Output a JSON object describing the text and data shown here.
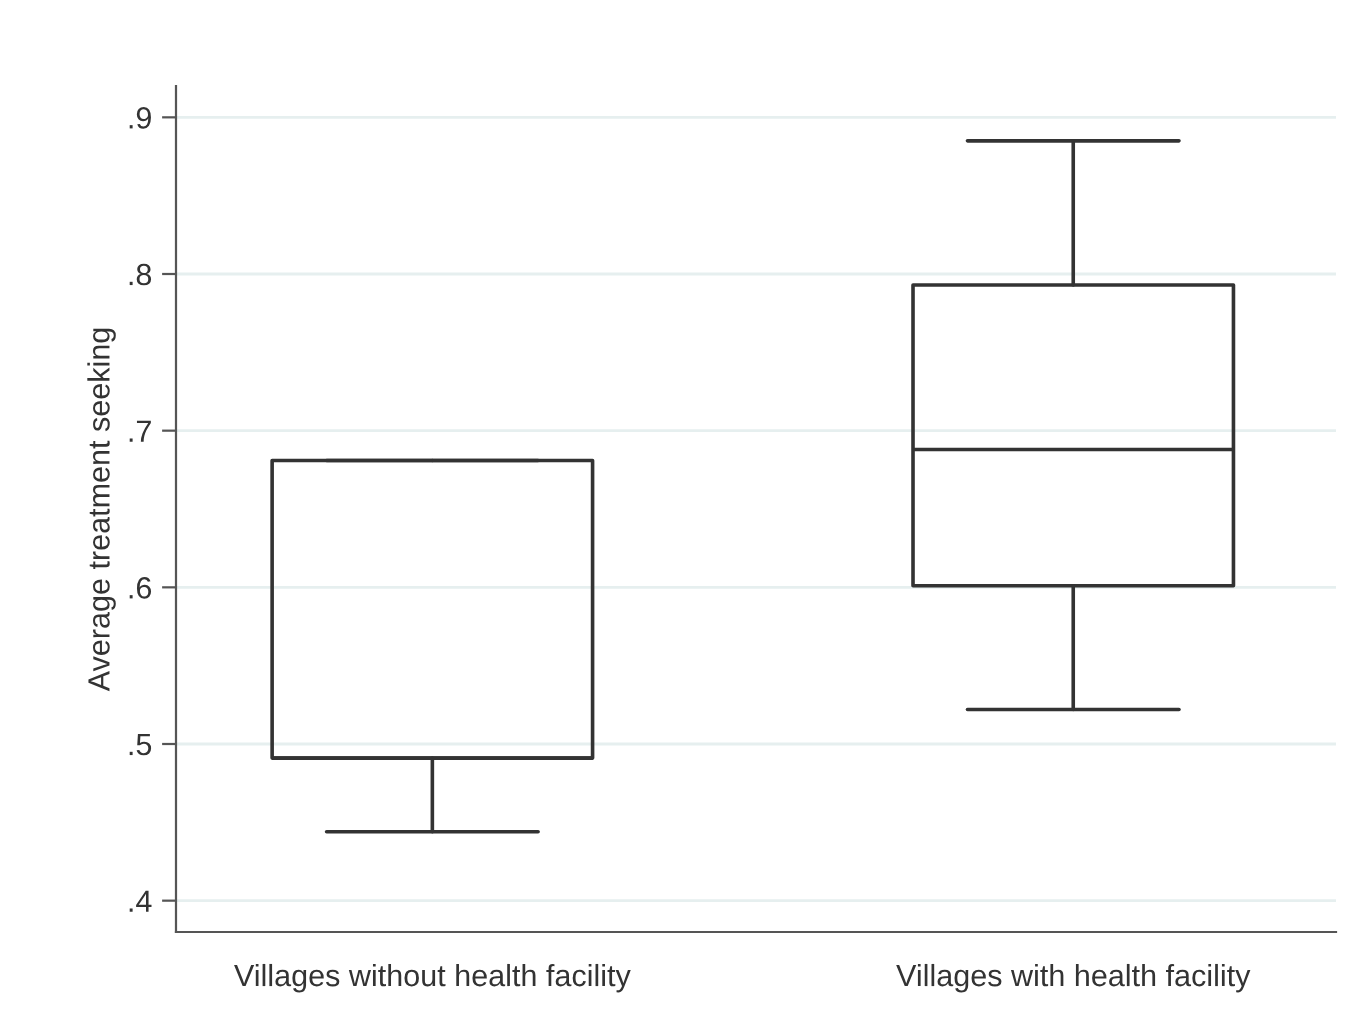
{
  "chart_data": {
    "type": "box",
    "ylabel": "Average treatment seeking",
    "categories": [
      "Villages without health facility",
      "Villages with health facility"
    ],
    "boxes": [
      {
        "low": 0.444,
        "q1": 0.491,
        "median": 0.491,
        "q3": 0.681,
        "high": 0.681
      },
      {
        "low": 0.522,
        "q1": 0.601,
        "median": 0.688,
        "q3": 0.793,
        "high": 0.885
      }
    ],
    "ylim": [
      0.38,
      0.92
    ],
    "yticks": [
      {
        "value": 0.4,
        "label": ".4"
      },
      {
        "value": 0.5,
        "label": ".5"
      },
      {
        "value": 0.6,
        "label": ".6"
      },
      {
        "value": 0.7,
        "label": ".7"
      },
      {
        "value": 0.8,
        "label": ".8"
      },
      {
        "value": 0.9,
        "label": ".9"
      }
    ],
    "grid": "y"
  }
}
